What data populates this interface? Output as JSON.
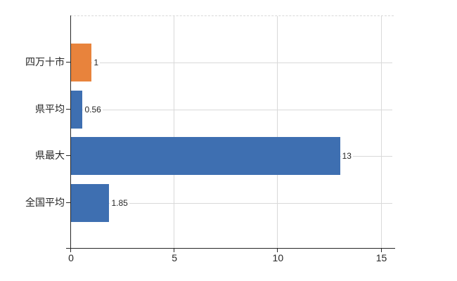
{
  "chart_data": {
    "type": "bar",
    "orientation": "horizontal",
    "title": "",
    "xlabel": "",
    "ylabel": "",
    "categories": [
      "四万十市",
      "県平均",
      "県最大",
      "全国平均"
    ],
    "values": [
      1,
      0.56,
      13,
      1.85
    ],
    "data_labels": [
      "1",
      "0.56",
      "13",
      "1.85"
    ],
    "bar_colors": [
      "#E8833C",
      "#3E6FB1",
      "#3E6FB1",
      "#3E6FB1"
    ],
    "xlim": [
      0,
      15.6
    ],
    "xticks": [
      "0",
      "5",
      "10",
      "15"
    ],
    "xtick_values": [
      0,
      5,
      10,
      15
    ],
    "grid": true,
    "legend": false,
    "colors": {
      "grid": "#d9d9d9",
      "axis": "#262626",
      "text": "#262626",
      "background": "#ffffff"
    }
  }
}
